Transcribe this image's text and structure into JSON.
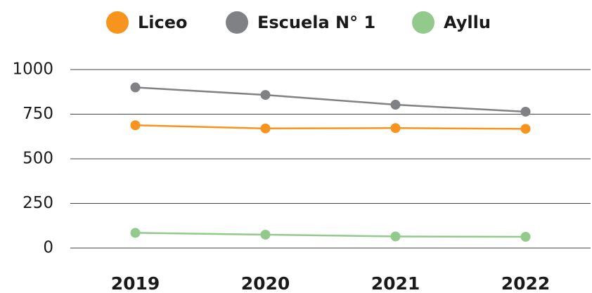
{
  "chart_data": {
    "type": "line",
    "categories": [
      "2019",
      "2020",
      "2021",
      "2022"
    ],
    "series": [
      {
        "name": "Liceo",
        "color": "#f7941d",
        "values": [
          688,
          670,
          672,
          668
        ]
      },
      {
        "name": "Escuela N° 1",
        "color": "#808184",
        "values": [
          900,
          858,
          803,
          764
        ]
      },
      {
        "name": "Ayllu",
        "color": "#92ca8c",
        "values": [
          85,
          75,
          65,
          63
        ]
      }
    ],
    "ylim": [
      0,
      1000
    ],
    "yticks": [
      0,
      250,
      500,
      750,
      1000
    ],
    "grid": true,
    "legend": "top"
  }
}
